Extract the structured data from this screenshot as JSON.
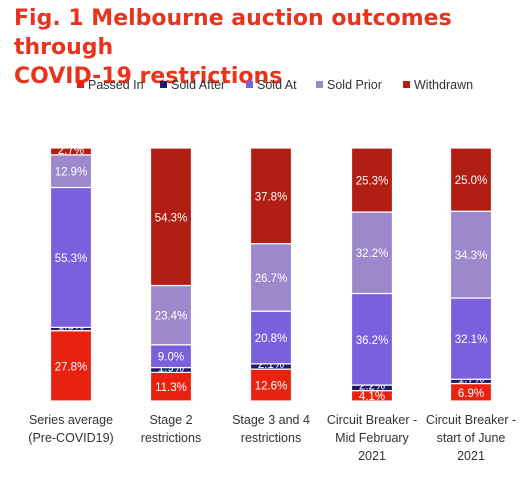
{
  "chart_data": {
    "type": "bar",
    "stacked": true,
    "percent": true,
    "title": "Fig. 1 Melbourne auction outcomes through COVID-19 restrictions",
    "title_lines": [
      "Fig. 1 Melbourne auction outcomes through",
      "COVID-19 restrictions"
    ],
    "title_color": "#e8341c",
    "legend_position": "top",
    "grid": false,
    "ylim": [
      0,
      100
    ],
    "categories": [
      [
        "Series average",
        "(Pre-COVID19)"
      ],
      [
        "Stage 2",
        "restrictions"
      ],
      [
        "Stage 3 and 4",
        "restrictions"
      ],
      [
        "Circuit Breaker -",
        "Mid February",
        "2021"
      ],
      [
        "Circuit Breaker -",
        "start of June",
        "2021"
      ]
    ],
    "series": [
      {
        "name": "Passed In",
        "color": "#e8220e",
        "values": [
          27.8,
          11.3,
          12.6,
          4.1,
          6.9
        ],
        "labels": [
          "27.8%",
          "11.3%",
          "12.6%",
          "4.1%",
          "6.9%"
        ]
      },
      {
        "name": "Sold After",
        "color": "#1f1a66",
        "values": [
          1.3,
          1.9,
          2.1,
          2.2,
          1.7
        ],
        "labels": [
          "1.3%",
          "1.9%",
          "2.1%",
          "2.2%",
          "1.7%"
        ]
      },
      {
        "name": "Sold At",
        "color": "#7b60de",
        "values": [
          55.3,
          9.0,
          20.8,
          36.2,
          32.1
        ],
        "labels": [
          "55.3%",
          "9.0%",
          "20.8%",
          "36.2%",
          "32.1%"
        ]
      },
      {
        "name": "Sold Prior",
        "color": "#9d88cc",
        "values": [
          12.9,
          23.4,
          26.7,
          32.2,
          34.3
        ],
        "labels": [
          "12.9%",
          "23.4%",
          "26.7%",
          "32.2%",
          "34.3%"
        ]
      },
      {
        "name": "Withdrawn",
        "color": "#b01e14",
        "values": [
          2.7,
          54.3,
          37.8,
          25.3,
          25.0
        ],
        "labels": [
          "2.7%",
          "54.3%",
          "37.8%",
          "25.3%",
          "25.0%"
        ]
      }
    ]
  }
}
